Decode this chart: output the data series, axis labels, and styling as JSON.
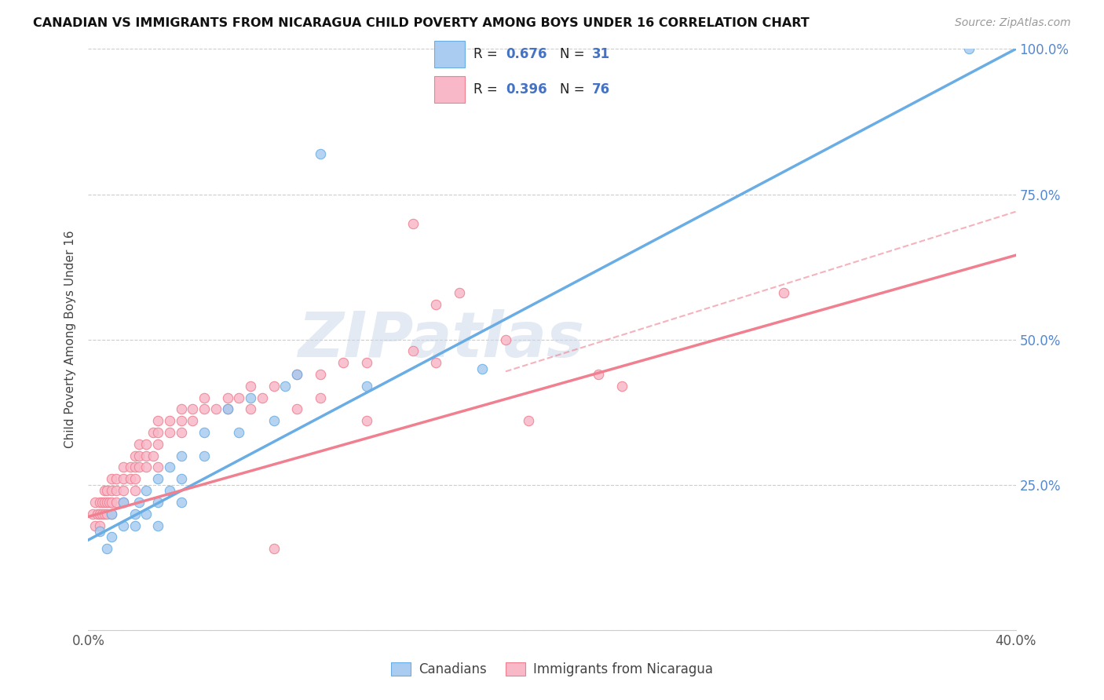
{
  "title": "CANADIAN VS IMMIGRANTS FROM NICARAGUA CHILD POVERTY AMONG BOYS UNDER 16 CORRELATION CHART",
  "source": "Source: ZipAtlas.com",
  "ylabel": "Child Poverty Among Boys Under 16",
  "x_min": 0.0,
  "x_max": 0.4,
  "y_min": 0.0,
  "y_max": 1.0,
  "blue_color": "#6aade4",
  "blue_fill": "#aaccf0",
  "pink_color": "#f08090",
  "pink_fill": "#f8b8c8",
  "watermark": "ZIPatlas",
  "blue_line_x0": 0.0,
  "blue_line_y0": 0.155,
  "blue_line_x1": 0.4,
  "blue_line_y1": 1.0,
  "pink_line_x0": 0.0,
  "pink_line_y0": 0.195,
  "pink_line_x1": 0.4,
  "pink_line_y1": 0.645,
  "dashed_line_x0": 0.18,
  "dashed_line_y0": 0.445,
  "dashed_line_x1": 0.4,
  "dashed_line_y1": 0.72,
  "canadians_scatter": [
    [
      0.005,
      0.17
    ],
    [
      0.008,
      0.14
    ],
    [
      0.01,
      0.16
    ],
    [
      0.01,
      0.2
    ],
    [
      0.015,
      0.18
    ],
    [
      0.015,
      0.22
    ],
    [
      0.02,
      0.2
    ],
    [
      0.02,
      0.18
    ],
    [
      0.022,
      0.22
    ],
    [
      0.025,
      0.24
    ],
    [
      0.025,
      0.2
    ],
    [
      0.03,
      0.26
    ],
    [
      0.03,
      0.22
    ],
    [
      0.03,
      0.18
    ],
    [
      0.035,
      0.28
    ],
    [
      0.035,
      0.24
    ],
    [
      0.04,
      0.3
    ],
    [
      0.04,
      0.26
    ],
    [
      0.04,
      0.22
    ],
    [
      0.05,
      0.34
    ],
    [
      0.05,
      0.3
    ],
    [
      0.06,
      0.38
    ],
    [
      0.065,
      0.34
    ],
    [
      0.07,
      0.4
    ],
    [
      0.08,
      0.36
    ],
    [
      0.085,
      0.42
    ],
    [
      0.09,
      0.44
    ],
    [
      0.12,
      0.42
    ],
    [
      0.17,
      0.45
    ],
    [
      0.1,
      0.82
    ],
    [
      0.38,
      1.0
    ]
  ],
  "nicaragua_scatter": [
    [
      0.002,
      0.2
    ],
    [
      0.003,
      0.22
    ],
    [
      0.003,
      0.18
    ],
    [
      0.004,
      0.2
    ],
    [
      0.005,
      0.22
    ],
    [
      0.005,
      0.2
    ],
    [
      0.005,
      0.18
    ],
    [
      0.006,
      0.22
    ],
    [
      0.006,
      0.2
    ],
    [
      0.007,
      0.24
    ],
    [
      0.007,
      0.22
    ],
    [
      0.007,
      0.2
    ],
    [
      0.008,
      0.24
    ],
    [
      0.008,
      0.22
    ],
    [
      0.008,
      0.2
    ],
    [
      0.009,
      0.22
    ],
    [
      0.01,
      0.26
    ],
    [
      0.01,
      0.24
    ],
    [
      0.01,
      0.22
    ],
    [
      0.01,
      0.2
    ],
    [
      0.012,
      0.26
    ],
    [
      0.012,
      0.24
    ],
    [
      0.012,
      0.22
    ],
    [
      0.015,
      0.28
    ],
    [
      0.015,
      0.26
    ],
    [
      0.015,
      0.24
    ],
    [
      0.015,
      0.22
    ],
    [
      0.018,
      0.28
    ],
    [
      0.018,
      0.26
    ],
    [
      0.02,
      0.3
    ],
    [
      0.02,
      0.28
    ],
    [
      0.02,
      0.26
    ],
    [
      0.02,
      0.24
    ],
    [
      0.022,
      0.32
    ],
    [
      0.022,
      0.3
    ],
    [
      0.022,
      0.28
    ],
    [
      0.025,
      0.32
    ],
    [
      0.025,
      0.3
    ],
    [
      0.025,
      0.28
    ],
    [
      0.028,
      0.34
    ],
    [
      0.028,
      0.3
    ],
    [
      0.03,
      0.36
    ],
    [
      0.03,
      0.34
    ],
    [
      0.03,
      0.32
    ],
    [
      0.03,
      0.28
    ],
    [
      0.035,
      0.36
    ],
    [
      0.035,
      0.34
    ],
    [
      0.04,
      0.38
    ],
    [
      0.04,
      0.36
    ],
    [
      0.04,
      0.34
    ],
    [
      0.045,
      0.38
    ],
    [
      0.045,
      0.36
    ],
    [
      0.05,
      0.4
    ],
    [
      0.05,
      0.38
    ],
    [
      0.055,
      0.38
    ],
    [
      0.06,
      0.4
    ],
    [
      0.06,
      0.38
    ],
    [
      0.065,
      0.4
    ],
    [
      0.07,
      0.42
    ],
    [
      0.07,
      0.38
    ],
    [
      0.075,
      0.4
    ],
    [
      0.08,
      0.42
    ],
    [
      0.09,
      0.44
    ],
    [
      0.09,
      0.38
    ],
    [
      0.1,
      0.44
    ],
    [
      0.1,
      0.4
    ],
    [
      0.11,
      0.46
    ],
    [
      0.12,
      0.46
    ],
    [
      0.12,
      0.36
    ],
    [
      0.14,
      0.48
    ],
    [
      0.15,
      0.46
    ],
    [
      0.15,
      0.56
    ],
    [
      0.16,
      0.58
    ],
    [
      0.18,
      0.5
    ],
    [
      0.19,
      0.36
    ],
    [
      0.22,
      0.44
    ],
    [
      0.23,
      0.42
    ],
    [
      0.3,
      0.58
    ],
    [
      0.14,
      0.7
    ],
    [
      0.08,
      0.14
    ]
  ]
}
